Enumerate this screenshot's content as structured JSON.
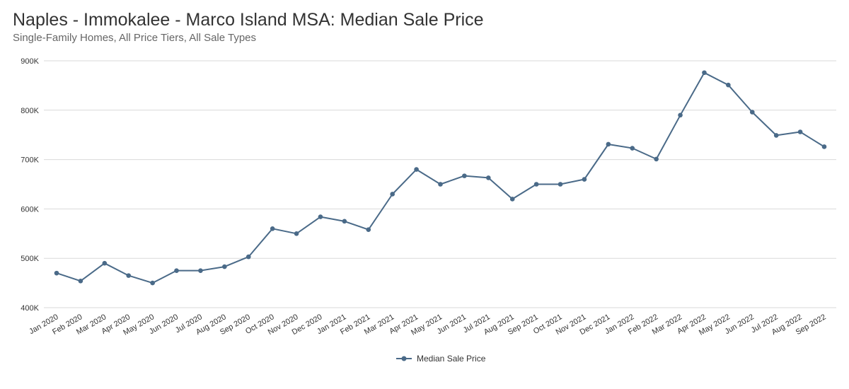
{
  "chart_data": {
    "type": "line",
    "title": "Naples - Immokalee - Marco Island MSA: Median Sale Price",
    "subtitle": "Single-Family Homes, All Price Tiers, All Sale Types",
    "xlabel": "",
    "ylabel": "",
    "ylim": [
      400000,
      900000
    ],
    "yticks": [
      {
        "value": 400000,
        "label": "400K"
      },
      {
        "value": 500000,
        "label": "500K"
      },
      {
        "value": 600000,
        "label": "600K"
      },
      {
        "value": 700000,
        "label": "700K"
      },
      {
        "value": 800000,
        "label": "800K"
      },
      {
        "value": 900000,
        "label": "900K"
      }
    ],
    "grid": true,
    "legend_position": "bottom-center",
    "categories": [
      "Jan 2020",
      "Feb 2020",
      "Mar 2020",
      "Apr 2020",
      "May 2020",
      "Jun 2020",
      "Jul 2020",
      "Aug 2020",
      "Sep 2020",
      "Oct 2020",
      "Nov 2020",
      "Dec 2020",
      "Jan 2021",
      "Feb 2021",
      "Mar 2021",
      "Apr 2021",
      "May 2021",
      "Jun 2021",
      "Jul 2021",
      "Aug 2021",
      "Sep 2021",
      "Oct 2021",
      "Nov 2021",
      "Dec 2021",
      "Jan 2022",
      "Feb 2022",
      "Mar 2022",
      "Apr 2022",
      "May 2022",
      "Jun 2022",
      "Jul 2022",
      "Aug 2022",
      "Sep 2022"
    ],
    "series": [
      {
        "name": "Median Sale Price",
        "color": "#4a6a88",
        "values": [
          470000,
          454000,
          490000,
          465000,
          450000,
          475000,
          475000,
          483000,
          503000,
          560000,
          550000,
          584000,
          575000,
          558000,
          630000,
          680000,
          650000,
          667000,
          663000,
          620000,
          650000,
          650000,
          660000,
          731000,
          723000,
          701000,
          790000,
          876000,
          851000,
          796000,
          749000,
          756000,
          726000
        ]
      }
    ]
  }
}
